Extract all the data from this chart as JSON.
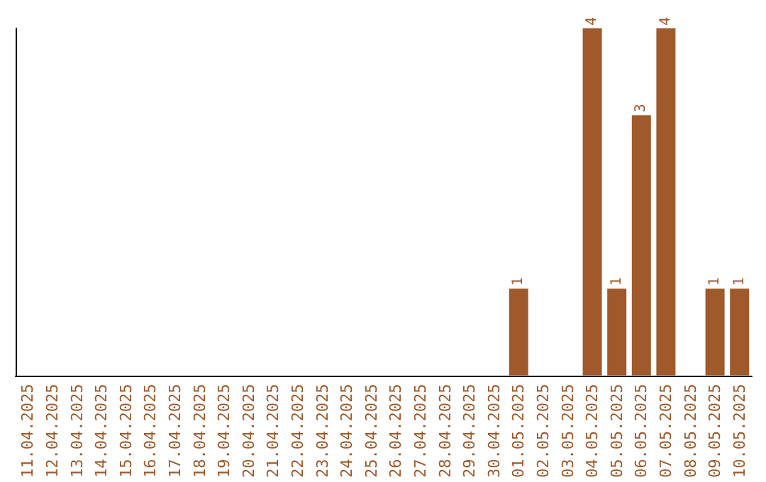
{
  "chart_data": {
    "type": "bar",
    "categories": [
      "11.04.2025",
      "12.04.2025",
      "13.04.2025",
      "14.04.2025",
      "15.04.2025",
      "16.04.2025",
      "17.04.2025",
      "18.04.2025",
      "19.04.2025",
      "20.04.2025",
      "21.04.2025",
      "22.04.2025",
      "23.04.2025",
      "24.04.2025",
      "25.04.2025",
      "26.04.2025",
      "27.04.2025",
      "28.04.2025",
      "29.04.2025",
      "30.04.2025",
      "01.05.2025",
      "02.05.2025",
      "03.05.2025",
      "04.05.2025",
      "05.05.2025",
      "06.05.2025",
      "07.05.2025",
      "08.05.2025",
      "09.05.2025",
      "10.05.2025"
    ],
    "values": [
      null,
      null,
      null,
      null,
      null,
      null,
      null,
      null,
      null,
      null,
      null,
      null,
      null,
      null,
      null,
      null,
      null,
      null,
      null,
      null,
      1,
      null,
      null,
      4,
      1,
      3,
      4,
      null,
      1,
      1
    ],
    "data_labels": true,
    "color": "#a0592a",
    "grid": false
  }
}
